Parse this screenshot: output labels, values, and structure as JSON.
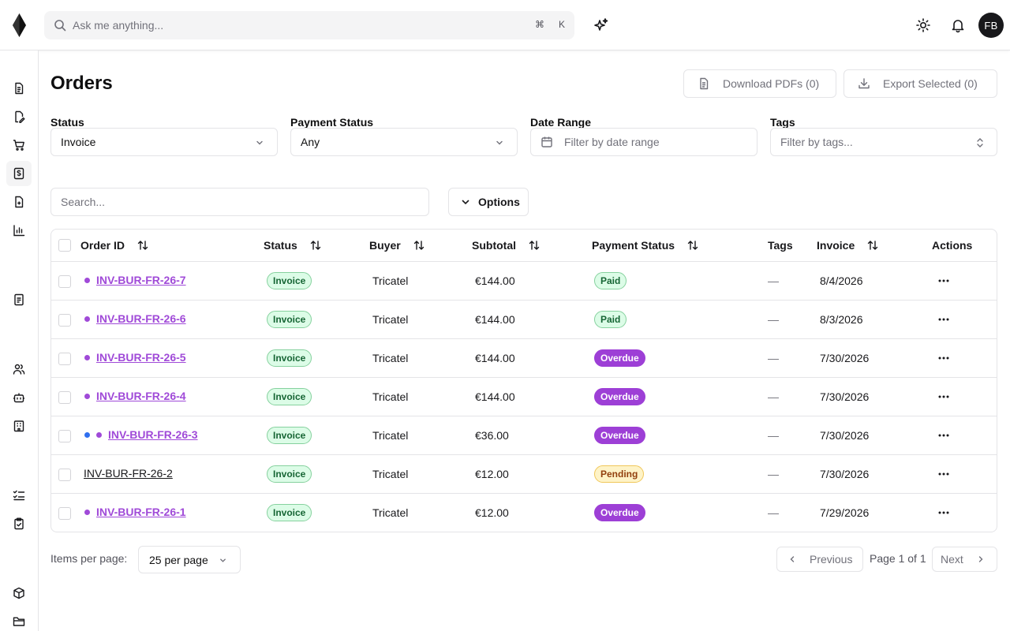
{
  "header": {
    "search_placeholder": "Ask me anything...",
    "shortcut_mod": "⌘",
    "shortcut_key": "K",
    "avatar_initials": "FB"
  },
  "sidebar": {
    "items": [
      {
        "icon": "file-text-icon",
        "active": false
      },
      {
        "icon": "file-signature-icon",
        "active": false
      },
      {
        "icon": "cart-icon",
        "active": false
      },
      {
        "icon": "receipt-dollar-icon",
        "active": true
      },
      {
        "icon": "file-plus-icon",
        "active": false
      },
      {
        "icon": "bar-chart-icon",
        "active": false
      },
      {
        "icon": "file-list-icon",
        "active": false
      },
      {
        "icon": "users-icon",
        "active": false
      },
      {
        "icon": "bot-icon",
        "active": false
      },
      {
        "icon": "building-icon",
        "active": false
      },
      {
        "icon": "checklist-icon",
        "active": false
      },
      {
        "icon": "clipboard-check-icon",
        "active": false
      },
      {
        "icon": "package-icon",
        "active": false
      },
      {
        "icon": "folder-icon",
        "active": false
      }
    ]
  },
  "page": {
    "title": "Orders",
    "download_pdfs": "Download PDFs (0)",
    "export_selected": "Export Selected (0)"
  },
  "filters": {
    "status_label": "Status",
    "status_value": "Invoice",
    "payment_status_label": "Payment Status",
    "payment_status_value": "Any",
    "date_range_label": "Date Range",
    "date_range_placeholder": "Filter by date range",
    "tags_label": "Tags",
    "tags_placeholder": "Filter by tags..."
  },
  "toolbar": {
    "search_placeholder": "Search...",
    "options_label": "Options"
  },
  "table": {
    "columns": {
      "order_id": "Order ID",
      "status": "Status",
      "buyer": "Buyer",
      "subtotal": "Subtotal",
      "payment_status": "Payment Status",
      "tags": "Tags",
      "invoice": "Invoice",
      "actions": "Actions"
    },
    "rows": [
      {
        "order_id": "INV-BUR-FR-26-7",
        "status": "Invoice",
        "buyer": "Tricatel",
        "subtotal": "€144.00",
        "payment_status": "Paid",
        "tags": "—",
        "invoice_date": "8/4/2026"
      },
      {
        "order_id": "INV-BUR-FR-26-6",
        "status": "Invoice",
        "buyer": "Tricatel",
        "subtotal": "€144.00",
        "payment_status": "Paid",
        "tags": "—",
        "invoice_date": "8/3/2026"
      },
      {
        "order_id": "INV-BUR-FR-26-5",
        "status": "Invoice",
        "buyer": "Tricatel",
        "subtotal": "€144.00",
        "payment_status": "Overdue",
        "tags": "—",
        "invoice_date": "7/30/2026"
      },
      {
        "order_id": "INV-BUR-FR-26-4",
        "status": "Invoice",
        "buyer": "Tricatel",
        "subtotal": "€144.00",
        "payment_status": "Overdue",
        "tags": "—",
        "invoice_date": "7/30/2026"
      },
      {
        "order_id": "INV-BUR-FR-26-3",
        "status": "Invoice",
        "buyer": "Tricatel",
        "subtotal": "€36.00",
        "payment_status": "Overdue",
        "tags": "—",
        "invoice_date": "7/30/2026"
      },
      {
        "order_id": "INV-BUR-FR-26-2",
        "status": "Invoice",
        "buyer": "Tricatel",
        "subtotal": "€12.00",
        "payment_status": "Pending",
        "tags": "—",
        "invoice_date": "7/30/2026"
      },
      {
        "order_id": "INV-BUR-FR-26-1",
        "status": "Invoice",
        "buyer": "Tricatel",
        "subtotal": "€12.00",
        "payment_status": "Overdue",
        "tags": "—",
        "invoice_date": "7/29/2026"
      }
    ]
  },
  "pagination": {
    "items_per_page_label": "Items per page:",
    "per_page_value": "25 per page",
    "previous": "Previous",
    "page_info": "Page 1 of 1",
    "next": "Next"
  },
  "colors": {
    "accent_purple": "#a04ad8",
    "overdue_badge": "#9d3fd6",
    "unread_dot_blue": "#2f6fef"
  }
}
